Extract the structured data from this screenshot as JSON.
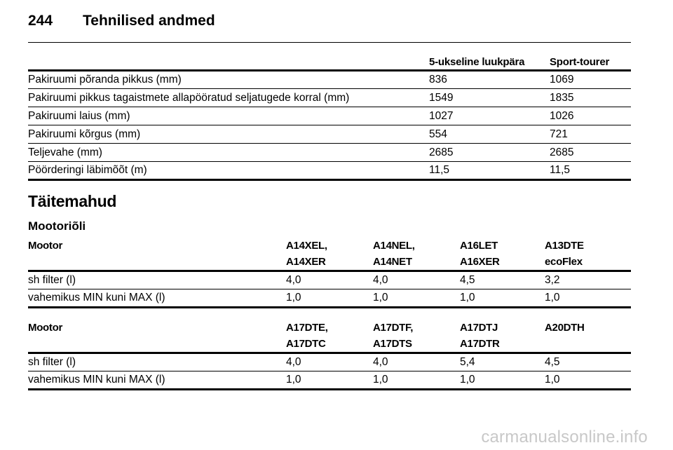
{
  "header": {
    "page_number": "244",
    "title": "Tehnilised andmed"
  },
  "dimensions": {
    "columns": [
      "",
      "5-ukseline luukpära",
      "Sport-tourer"
    ],
    "rows": [
      [
        "Pakiruumi põranda pikkus (mm)",
        "836",
        "1069"
      ],
      [
        "Pakiruumi pikkus tagaistmete allapööratud seljatugede korral (mm)",
        "1549",
        "1835"
      ],
      [
        "Pakiruumi laius (mm)",
        "1027",
        "1026"
      ],
      [
        "Pakiruumi kõrgus (mm)",
        "554",
        "721"
      ],
      [
        "Teljevahe (mm)",
        "2685",
        "2685"
      ],
      [
        "Pöörderingi läbimõõt (m)",
        "11,5",
        "11,5"
      ]
    ]
  },
  "section_title": "Täitemahud",
  "subsection_title": "Mootoriõli",
  "oil_tables": [
    {
      "label": "Mootor",
      "engines": [
        [
          "A14XEL,",
          "A14XER"
        ],
        [
          "A14NEL,",
          "A14NET"
        ],
        [
          "A16LET",
          "A16XER"
        ],
        [
          "A13DTE",
          "ecoFlex"
        ]
      ],
      "rows": [
        [
          "sh filter (l)",
          "4,0",
          "4,0",
          "4,5",
          "3,2"
        ],
        [
          "vahemikus MIN kuni MAX (l)",
          "1,0",
          "1,0",
          "1,0",
          "1,0"
        ]
      ]
    },
    {
      "label": "Mootor",
      "engines": [
        [
          "A17DTE,",
          "A17DTC"
        ],
        [
          "A17DTF,",
          "A17DTS"
        ],
        [
          "A17DTJ",
          "A17DTR"
        ],
        [
          "A20DTH",
          ""
        ]
      ],
      "rows": [
        [
          "sh filter (l)",
          "4,0",
          "4,0",
          "5,4",
          "4,5"
        ],
        [
          "vahemikus MIN kuni MAX (l)",
          "1,0",
          "1,0",
          "1,0",
          "1,0"
        ]
      ]
    }
  ],
  "watermark": "carmanualsonline.info"
}
